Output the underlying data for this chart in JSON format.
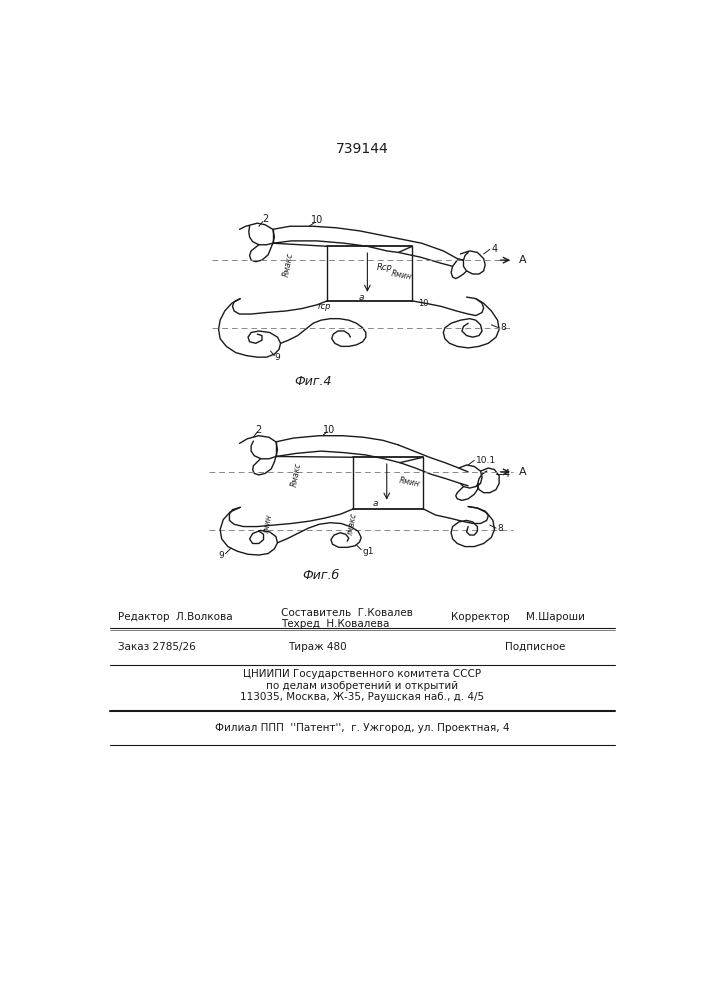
{
  "patent_number": "739144",
  "fig4_caption": "Фиг.4",
  "fig5_caption": "Фиг.б",
  "bg_color": "#ffffff",
  "line_color": "#1a1a1a",
  "footer_cniip": "ЦНИИПИ Государственного комитета СССР",
  "footer_po": "по делам изобретений и открытий",
  "footer_addr": "113035, Москва, Ж-35, Раушская наб., д. 4/5",
  "footer_filial": "Филиал ППП  ''Патент'',  г. Ужгород, ул. Проектная, 4"
}
